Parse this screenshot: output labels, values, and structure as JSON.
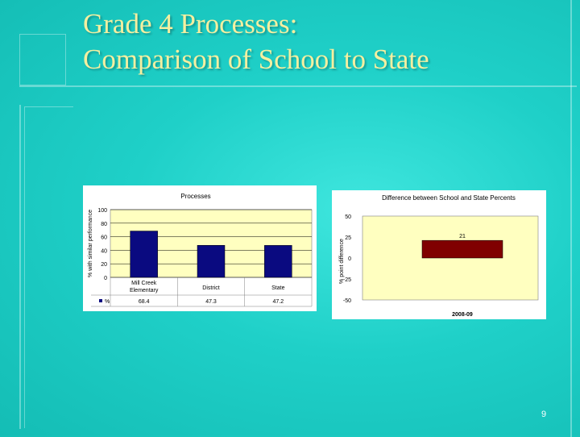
{
  "slide": {
    "title_line1": "Grade 4 Processes:",
    "title_line2": "Comparison of School to State",
    "page_number": "9"
  },
  "chart_data": [
    {
      "type": "bar",
      "title": "Processes",
      "ylabel": "% with similar performance",
      "categories": [
        "Mill Creek Elementary",
        "District",
        "State"
      ],
      "series": [
        {
          "name": "%",
          "values": [
            68.4,
            47.3,
            47.2
          ],
          "labels": [
            "68.4",
            "47.3",
            "47.2"
          ],
          "color": "#0a0a80"
        }
      ],
      "ylim": [
        0,
        100
      ],
      "yticks": [
        "100",
        "80",
        "60",
        "40",
        "20",
        "0"
      ],
      "data_table": true,
      "grid": true,
      "plot_background": "#ffffc0"
    },
    {
      "type": "bar",
      "title": "Difference between School and State Percents",
      "ylabel": "% point difference",
      "categories": [
        "2008-09"
      ],
      "values": [
        21
      ],
      "value_labels": [
        "21"
      ],
      "ylim": [
        -50,
        50
      ],
      "yticks": [
        "50",
        "25",
        "0",
        "-25",
        "-50"
      ],
      "bar_color": "#800000",
      "plot_background": "#ffffc0",
      "grid": false
    }
  ]
}
